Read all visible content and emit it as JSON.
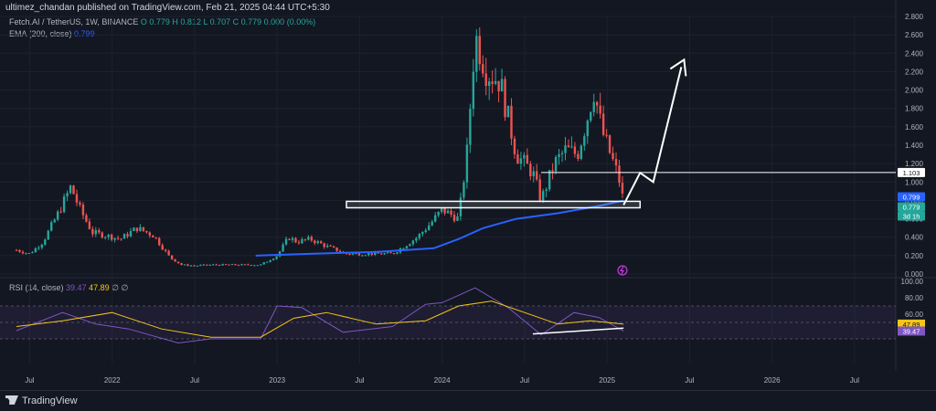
{
  "header": {
    "published": "ultimez_chandan published on TradingView.com, Feb 21, 2025 04:44 UTC+5:30",
    "symbol_line_label": "Fetch.AI / TetherUS, 1W, BINANCE",
    "ohlc": "O 0.779  H 0.812  L 0.707  C 0.779  0.000 (0.00%)",
    "ema_label": "EMA (200, close)",
    "ema_value": "0.799",
    "rsi_label": "RSI (14, close)",
    "rsi_value": "39.47",
    "rsi_ma_value": "47.89",
    "rsi_extra": "∅  ∅"
  },
  "footer": {
    "brand": "TradingView"
  },
  "colors": {
    "background": "#131722",
    "up": "#26a69a",
    "down": "#ef5350",
    "ema": "#2962ff",
    "rsi": "#7e57c2",
    "rsi_ma": "#f5c518",
    "annotation": "#ffffff"
  },
  "chart_data": [
    {
      "type": "candlestick",
      "title": "Fetch.AI / TetherUS, 1W, BINANCE",
      "y_axis_labels": [
        "2.800",
        "2.600",
        "2.400",
        "2.200",
        "2.000",
        "1.800",
        "1.600",
        "1.400",
        "1.200",
        "1.000",
        "0.800",
        "0.600",
        "0.400",
        "0.200",
        "0.000"
      ],
      "ylim": [
        0,
        2.8
      ],
      "x_axis_labels": [
        "Jul",
        "2022",
        "Jul",
        "2023",
        "Jul",
        "2024",
        "Jul",
        "2025",
        "Jul",
        "2026",
        "Jul"
      ],
      "series": [
        {
          "name": "Fetch.AI / TetherUS",
          "close_path": [
            [
              2021.42,
              0.26
            ],
            [
              2021.5,
              0.22
            ],
            [
              2021.58,
              0.35
            ],
            [
              2021.67,
              0.65
            ],
            [
              2021.75,
              0.95
            ],
            [
              2021.8,
              0.72
            ],
            [
              2021.88,
              0.45
            ],
            [
              2021.96,
              0.42
            ],
            [
              2022.05,
              0.38
            ],
            [
              2022.15,
              0.5
            ],
            [
              2022.25,
              0.42
            ],
            [
              2022.35,
              0.18
            ],
            [
              2022.42,
              0.1
            ],
            [
              2022.5,
              0.09
            ],
            [
              2022.6,
              0.1
            ],
            [
              2022.75,
              0.1
            ],
            [
              2022.9,
              0.1
            ],
            [
              2023.0,
              0.2
            ],
            [
              2023.07,
              0.4
            ],
            [
              2023.12,
              0.35
            ],
            [
              2023.2,
              0.38
            ],
            [
              2023.3,
              0.3
            ],
            [
              2023.42,
              0.22
            ],
            [
              2023.55,
              0.22
            ],
            [
              2023.7,
              0.22
            ],
            [
              2023.85,
              0.4
            ],
            [
              2023.93,
              0.55
            ],
            [
              2024.0,
              0.7
            ],
            [
              2024.1,
              0.6
            ],
            [
              2024.15,
              1.3
            ],
            [
              2024.2,
              2.6
            ],
            [
              2024.27,
              2.2
            ],
            [
              2024.35,
              2.1
            ],
            [
              2024.45,
              1.3
            ],
            [
              2024.55,
              1.1
            ],
            [
              2024.6,
              0.8
            ],
            [
              2024.68,
              1.2
            ],
            [
              2024.75,
              1.35
            ],
            [
              2024.82,
              1.3
            ],
            [
              2024.88,
              1.7
            ],
            [
              2024.92,
              2.0
            ],
            [
              2024.97,
              1.55
            ],
            [
              2025.02,
              1.3
            ],
            [
              2025.07,
              1.05
            ],
            [
              2025.1,
              0.779
            ]
          ]
        },
        {
          "name": "EMA (200, close)",
          "path": [
            [
              2022.87,
              0.2
            ],
            [
              2023.2,
              0.22
            ],
            [
              2023.6,
              0.24
            ],
            [
              2023.95,
              0.28
            ],
            [
              2024.1,
              0.38
            ],
            [
              2024.25,
              0.5
            ],
            [
              2024.45,
              0.6
            ],
            [
              2024.7,
              0.66
            ],
            [
              2024.95,
              0.74
            ],
            [
              2025.1,
              0.799
            ]
          ]
        }
      ],
      "price_labels": [
        {
          "value": "1.103",
          "kind": "resistance"
        },
        {
          "value": "0.799",
          "kind": "ema"
        },
        {
          "value": "0.779",
          "kind": "last"
        },
        {
          "value": "3d 1h",
          "kind": "countdown"
        }
      ],
      "annotations": {
        "resistance_level": 1.103,
        "support_zone": [
          0.72,
          0.79
        ],
        "projected_path": [
          [
            2025.1,
            0.75
          ],
          [
            2025.2,
            1.1
          ],
          [
            2025.28,
            1.0
          ],
          [
            2025.45,
            2.25
          ]
        ]
      }
    },
    {
      "type": "line",
      "title": "RSI (14, close)",
      "y_axis_labels": [
        "100.00",
        "80.00",
        "60.00",
        "47.89",
        "39.47"
      ],
      "ylim": [
        0,
        100
      ],
      "bands": [
        30,
        50,
        70
      ],
      "series": [
        {
          "name": "RSI",
          "path": [
            [
              2021.42,
              40
            ],
            [
              2021.7,
              62
            ],
            [
              2021.9,
              48
            ],
            [
              2022.1,
              42
            ],
            [
              2022.4,
              25
            ],
            [
              2022.6,
              30
            ],
            [
              2022.9,
              30
            ],
            [
              2023.0,
              70
            ],
            [
              2023.15,
              68
            ],
            [
              2023.4,
              38
            ],
            [
              2023.7,
              45
            ],
            [
              2023.9,
              72
            ],
            [
              2024.0,
              74
            ],
            [
              2024.2,
              92
            ],
            [
              2024.4,
              68
            ],
            [
              2024.6,
              35
            ],
            [
              2024.8,
              62
            ],
            [
              2024.95,
              56
            ],
            [
              2025.1,
              39.47
            ]
          ]
        },
        {
          "name": "RSI MA",
          "path": [
            [
              2021.42,
              45
            ],
            [
              2021.7,
              52
            ],
            [
              2022.0,
              62
            ],
            [
              2022.3,
              42
            ],
            [
              2022.6,
              32
            ],
            [
              2022.9,
              32
            ],
            [
              2023.1,
              55
            ],
            [
              2023.3,
              62
            ],
            [
              2023.6,
              48
            ],
            [
              2023.9,
              52
            ],
            [
              2024.1,
              70
            ],
            [
              2024.3,
              76
            ],
            [
              2024.5,
              62
            ],
            [
              2024.7,
              48
            ],
            [
              2024.9,
              52
            ],
            [
              2025.1,
              47.89
            ]
          ]
        }
      ],
      "divergence_line": [
        [
          2024.55,
          36
        ],
        [
          2025.1,
          43
        ]
      ]
    }
  ]
}
